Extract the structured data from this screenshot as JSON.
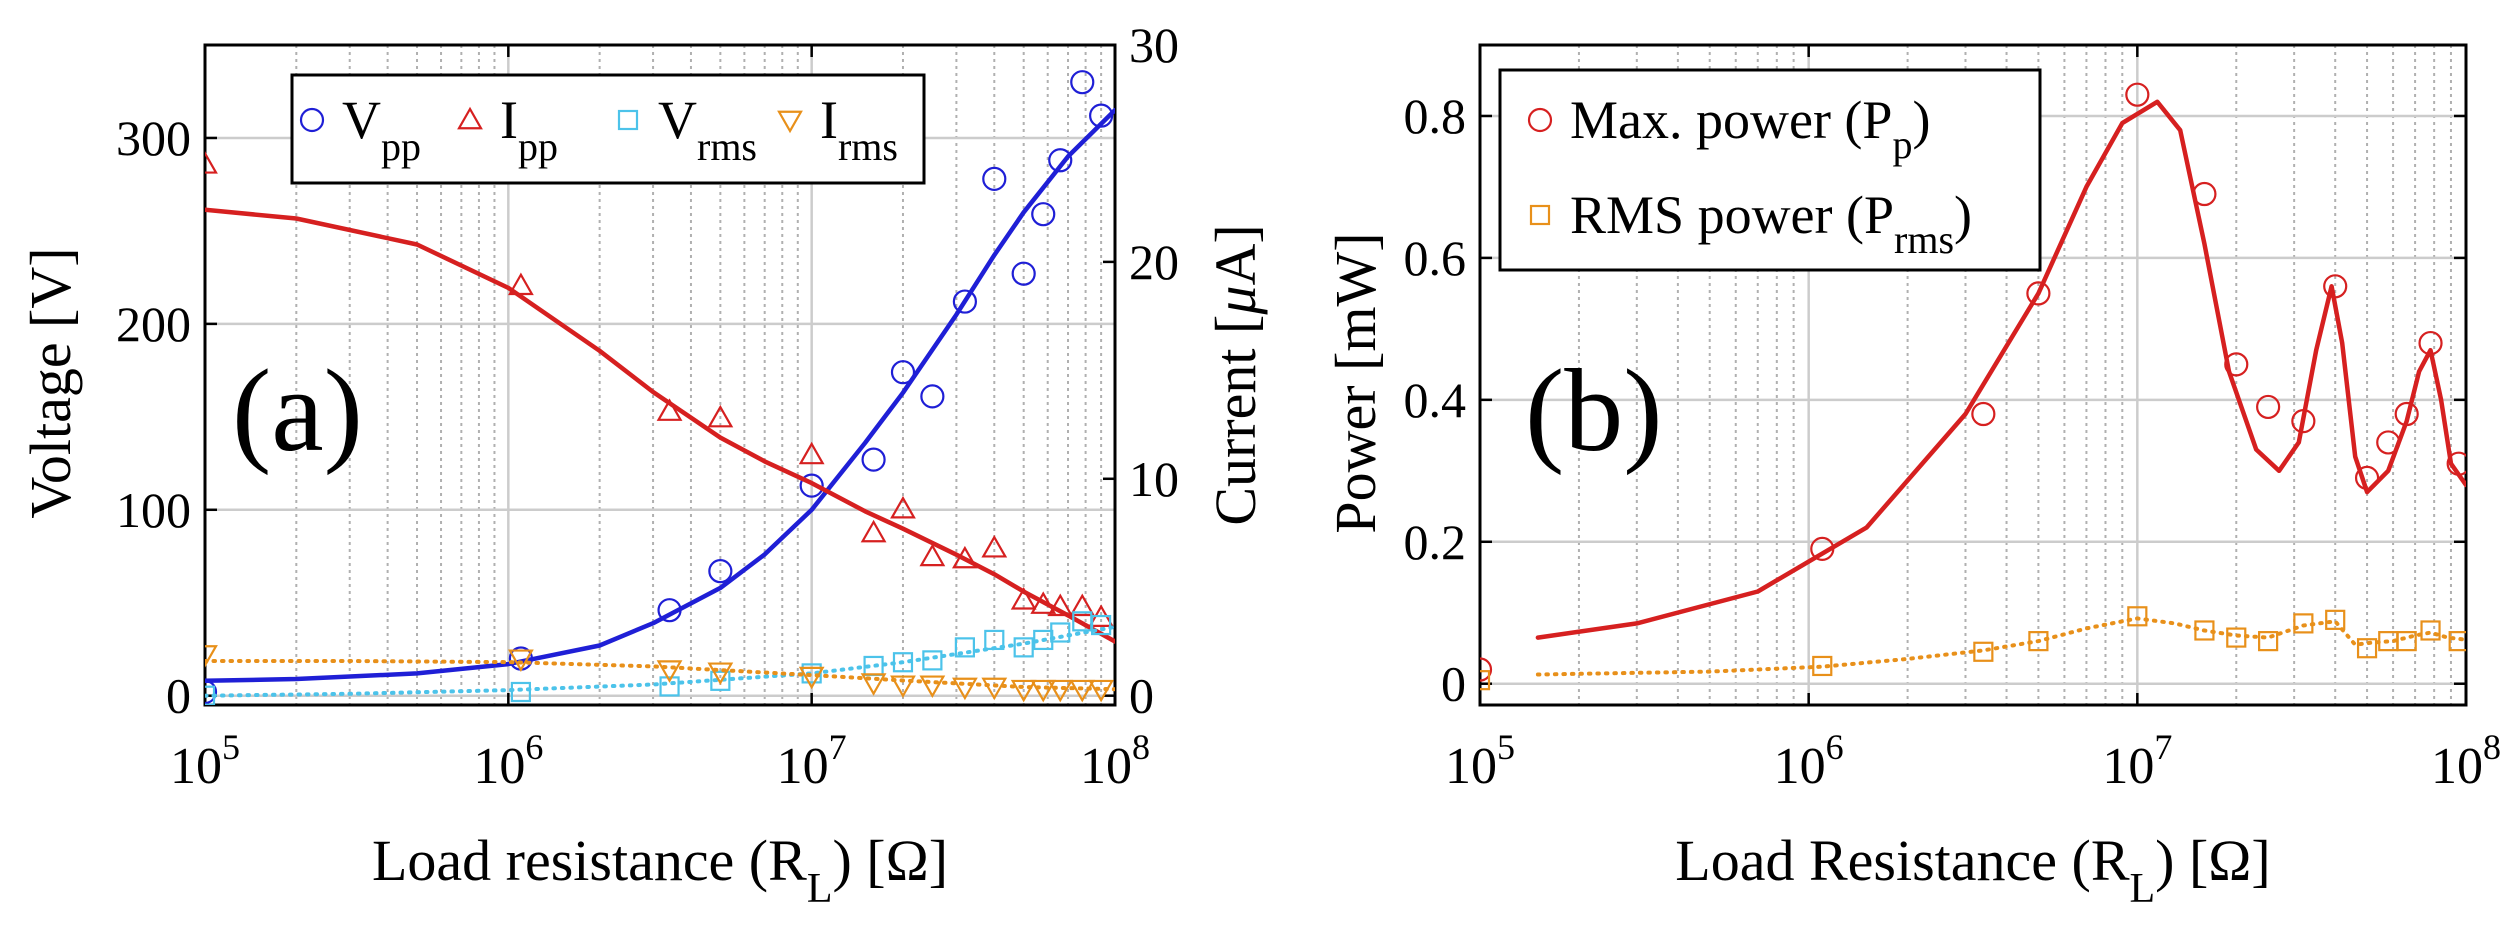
{
  "colors": {
    "vpp": "#1f1fd6",
    "ipp": "#d62020",
    "vrms": "#4cc3ea",
    "irms": "#e8901a",
    "pp": "#d62020",
    "prms": "#e8901a",
    "grid_major": "#cccccc",
    "grid_minor": "#b0b0b0"
  },
  "chart_data": [
    {
      "id": "a",
      "type": "scatter",
      "panel_label": "(a)",
      "xlabel_main": "Load resistance (R",
      "xlabel_sub": "L",
      "xlabel_tail": ") [Ω]",
      "ylabel_left": "Voltage [V]",
      "ylabel_right_main": "Current [",
      "ylabel_right_mu": "μ",
      "ylabel_right_tail": "A]",
      "xscale": "log",
      "xlim": [
        100000,
        100000000
      ],
      "ylim_left": [
        -5,
        350
      ],
      "ylim_right": [
        -0.43,
        30
      ],
      "xticks": [
        {
          "value": 100000,
          "base": "10",
          "exp": "5"
        },
        {
          "value": 1000000,
          "base": "10",
          "exp": "6"
        },
        {
          "value": 10000000,
          "base": "10",
          "exp": "7"
        },
        {
          "value": 100000000,
          "base": "10",
          "exp": "8"
        }
      ],
      "yticks_left": [
        {
          "value": 0,
          "label": "0"
        },
        {
          "value": 100,
          "label": "100"
        },
        {
          "value": 200,
          "label": "200"
        },
        {
          "value": 300,
          "label": "300"
        }
      ],
      "yticks_right": [
        {
          "value": 0,
          "label": "0"
        },
        {
          "value": 10,
          "label": "10"
        },
        {
          "value": 20,
          "label": "20"
        },
        {
          "value": 30,
          "label": "30"
        }
      ],
      "legend": [
        {
          "key": "vpp",
          "marker": "circle",
          "main": "V",
          "sub": "pp"
        },
        {
          "key": "ipp",
          "marker": "triangle",
          "main": "I",
          "sub": "pp"
        },
        {
          "key": "vrms",
          "marker": "square",
          "main": "V",
          "sub": "rms"
        },
        {
          "key": "irms",
          "marker": "triangle-down",
          "main": "I",
          "sub": "rms"
        }
      ],
      "series": [
        {
          "key": "vpp",
          "name": "Vpp",
          "axis": "left",
          "marker": "circle",
          "x": [
            100000,
            1100000,
            3400000,
            5000000,
            10000000,
            16000000,
            20000000,
            25000000,
            32000000,
            40000000,
            50000000,
            58000000,
            66000000,
            78000000,
            90000000
          ],
          "y": [
            2,
            20,
            46,
            67,
            113,
            127,
            174,
            161,
            212,
            278,
            227,
            259,
            288,
            330,
            312
          ],
          "fit_x": [
            100000,
            200000,
            500000,
            1000000,
            2000000,
            3000000,
            5000000,
            7000000,
            10000000,
            15000000,
            20000000,
            30000000,
            40000000,
            50000000,
            70000000,
            100000000
          ],
          "fit_y": [
            8,
            9,
            12,
            17,
            27,
            39,
            58,
            76,
            100,
            136,
            163,
            205,
            237,
            260,
            290,
            315
          ],
          "fit_style": "solid"
        },
        {
          "key": "ipp",
          "name": "Ipp",
          "axis": "right",
          "marker": "triangle",
          "x": [
            100000,
            1100000,
            3400000,
            5000000,
            10000000,
            16000000,
            20000000,
            25000000,
            32000000,
            40000000,
            50000000,
            58000000,
            66000000,
            78000000,
            90000000
          ],
          "y": [
            24.5,
            18.9,
            13.1,
            12.8,
            11.1,
            7.5,
            8.6,
            6.4,
            6.3,
            6.8,
            4.4,
            4.2,
            4.1,
            4.1,
            3.6
          ],
          "fit_x": [
            100000,
            200000,
            500000,
            1000000,
            2000000,
            3000000,
            5000000,
            7000000,
            10000000,
            15000000,
            20000000,
            30000000,
            40000000,
            50000000,
            70000000,
            100000000
          ],
          "fit_y": [
            22.4,
            22.0,
            20.8,
            18.8,
            15.9,
            14.0,
            11.9,
            10.8,
            9.8,
            8.5,
            7.7,
            6.5,
            5.6,
            4.8,
            3.7,
            2.5
          ],
          "fit_style": "solid"
        },
        {
          "key": "vrms",
          "name": "Vrms",
          "axis": "left",
          "marker": "square",
          "x": [
            100000,
            1100000,
            3400000,
            5000000,
            10000000,
            16000000,
            20000000,
            25000000,
            32000000,
            40000000,
            50000000,
            58000000,
            66000000,
            78000000,
            90000000
          ],
          "y": [
            0,
            2,
            5,
            8,
            12,
            16,
            18,
            19,
            26,
            30,
            26,
            30,
            34,
            40,
            38
          ],
          "fit_x": [
            100000,
            300000,
            1000000,
            3000000,
            10000000,
            20000000,
            50000000,
            100000000
          ],
          "fit_y": [
            0,
            1,
            3,
            6,
            12,
            18,
            28,
            37
          ],
          "fit_style": "dotted"
        },
        {
          "key": "irms",
          "name": "Irms",
          "axis": "right",
          "marker": "triangle-down",
          "x": [
            100000,
            1100000,
            3400000,
            5000000,
            10000000,
            16000000,
            20000000,
            25000000,
            32000000,
            40000000,
            50000000,
            58000000,
            66000000,
            78000000,
            90000000
          ],
          "y": [
            1.9,
            1.7,
            1.2,
            1.1,
            0.9,
            0.6,
            0.5,
            0.5,
            0.4,
            0.4,
            0.3,
            0.3,
            0.3,
            0.3,
            0.3
          ],
          "fit_x": [
            100000,
            300000,
            1000000,
            3000000,
            10000000,
            20000000,
            50000000,
            100000000
          ],
          "fit_y": [
            1.6,
            1.6,
            1.55,
            1.35,
            0.95,
            0.7,
            0.4,
            0.3
          ],
          "fit_style": "dotted"
        }
      ]
    },
    {
      "id": "b",
      "type": "scatter",
      "panel_label": "(b)",
      "xlabel_main": "Load Resistance (R",
      "xlabel_sub": "L",
      "xlabel_tail": ") [Ω]",
      "ylabel_left": "Power [mW]",
      "xscale": "log",
      "xlim": [
        100000,
        100000000
      ],
      "ylim_left": [
        -0.03,
        0.9
      ],
      "xticks": [
        {
          "value": 100000,
          "base": "10",
          "exp": "5"
        },
        {
          "value": 1000000,
          "base": "10",
          "exp": "6"
        },
        {
          "value": 10000000,
          "base": "10",
          "exp": "7"
        },
        {
          "value": 100000000,
          "base": "10",
          "exp": "8"
        }
      ],
      "yticks_left": [
        {
          "value": 0,
          "label": "0"
        },
        {
          "value": 0.2,
          "label": "0.2"
        },
        {
          "value": 0.4,
          "label": "0.4"
        },
        {
          "value": 0.6,
          "label": "0.6"
        },
        {
          "value": 0.8,
          "label": "0.8"
        }
      ],
      "legend": [
        {
          "key": "pp",
          "marker": "circle",
          "main": "Max. power (P",
          "sub": "p",
          "tail": ")"
        },
        {
          "key": "prms",
          "marker": "square",
          "main": "RMS power (P",
          "sub": "rms",
          "tail": ")"
        }
      ],
      "series": [
        {
          "key": "pp",
          "name": "Max. power (Pp)",
          "axis": "left",
          "marker": "circle",
          "x": [
            100000,
            1100000,
            3400000,
            5000000,
            10000000,
            16000000,
            20000000,
            25000000,
            32000000,
            40000000,
            50000000,
            58000000,
            66000000,
            78000000,
            95000000
          ],
          "y": [
            0.02,
            0.19,
            0.38,
            0.55,
            0.83,
            0.69,
            0.45,
            0.39,
            0.37,
            0.56,
            0.29,
            0.34,
            0.38,
            0.48,
            0.31
          ],
          "fit_x": [
            150000,
            300000,
            700000,
            1500000,
            3000000,
            5000000,
            7000000,
            9000000,
            11500000,
            13500000,
            16000000,
            19000000,
            23000000,
            27000000,
            31000000,
            35000000,
            39000000,
            42000000,
            46000000,
            50000000,
            58000000,
            66000000,
            72000000,
            78000000,
            84000000,
            90000000,
            100000000
          ],
          "fit_y": [
            0.065,
            0.085,
            0.13,
            0.22,
            0.38,
            0.55,
            0.7,
            0.79,
            0.82,
            0.78,
            0.62,
            0.44,
            0.33,
            0.3,
            0.34,
            0.47,
            0.56,
            0.48,
            0.32,
            0.27,
            0.3,
            0.37,
            0.44,
            0.47,
            0.4,
            0.31,
            0.28
          ],
          "fit_style": "solid"
        },
        {
          "key": "prms",
          "name": "RMS power (Prms)",
          "axis": "left",
          "marker": "square",
          "x": [
            100000,
            1100000,
            3400000,
            5000000,
            10000000,
            16000000,
            20000000,
            25000000,
            32000000,
            40000000,
            50000000,
            58000000,
            66000000,
            78000000,
            95000000
          ],
          "y": [
            0.005,
            0.025,
            0.045,
            0.06,
            0.095,
            0.075,
            0.065,
            0.06,
            0.085,
            0.09,
            0.05,
            0.06,
            0.06,
            0.075,
            0.06
          ],
          "fit_x": [
            150000,
            500000,
            1100000,
            2000000,
            3400000,
            5000000,
            7000000,
            10000000,
            13000000,
            16000000,
            20000000,
            25000000,
            32000000,
            40000000,
            46000000,
            52000000,
            60000000,
            70000000,
            78000000,
            88000000,
            100000000
          ],
          "fit_y": [
            0.013,
            0.017,
            0.024,
            0.035,
            0.047,
            0.06,
            0.078,
            0.092,
            0.085,
            0.075,
            0.068,
            0.065,
            0.082,
            0.088,
            0.055,
            0.058,
            0.06,
            0.068,
            0.072,
            0.065,
            0.062
          ],
          "fit_style": "dotted"
        }
      ]
    }
  ]
}
